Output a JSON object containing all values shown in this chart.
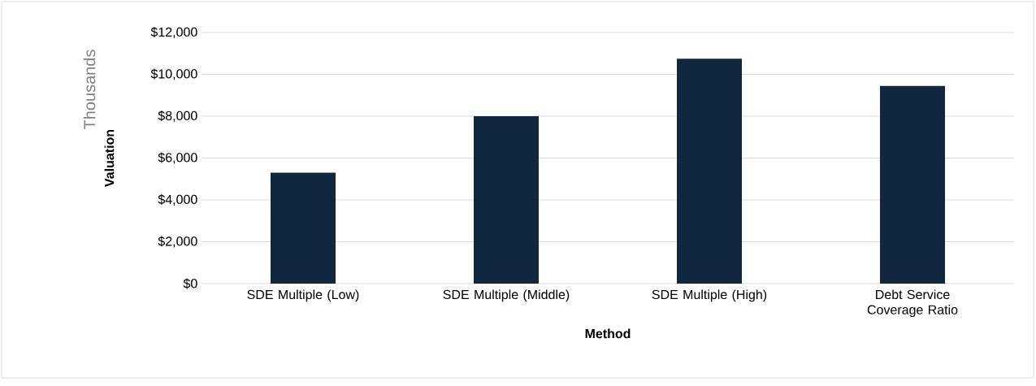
{
  "chart_data": {
    "type": "bar",
    "xlabel": "Method",
    "ylabel": "Valuation",
    "annotations": [
      "Thousands"
    ],
    "categories": [
      "SDE Multiple (Low)",
      "SDE Multiple (Middle)",
      "SDE Multiple (High)",
      "Debt Service Coverage Ratio"
    ],
    "values": [
      5300,
      8000,
      10750,
      9450
    ],
    "color": "#10273f",
    "ylim": [
      0,
      12000
    ],
    "yticks": [
      {
        "value": 0,
        "label": "$0"
      },
      {
        "value": 2000,
        "label": "$2,000"
      },
      {
        "value": 4000,
        "label": "$4,000"
      },
      {
        "value": 6000,
        "label": "$6,000"
      },
      {
        "value": 8000,
        "label": "$8,000"
      },
      {
        "value": 10000,
        "label": "$10,000"
      },
      {
        "value": 12000,
        "label": "$12,000"
      }
    ],
    "grid": "y"
  }
}
